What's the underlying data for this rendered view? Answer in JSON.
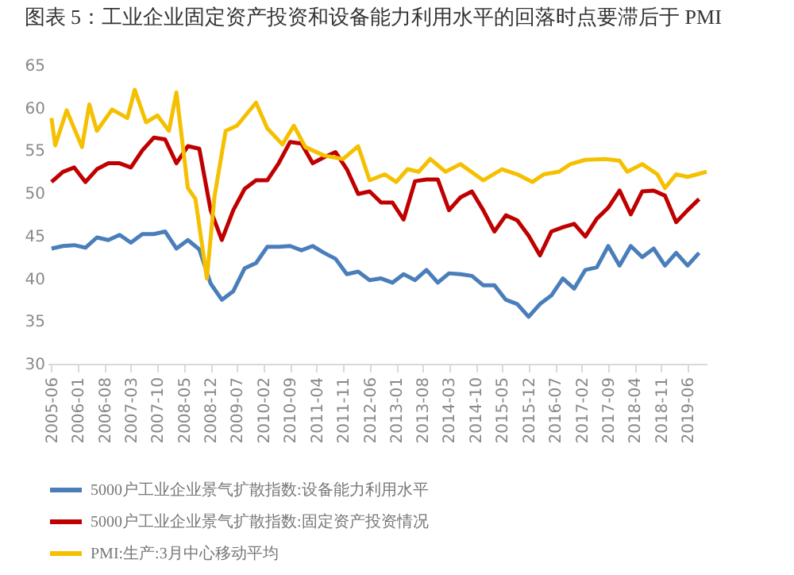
{
  "chart_data": {
    "type": "line",
    "title": "图表 5：工业企业固定资产投资和设备能力利用水平的回落时点要滞后于 PMI",
    "xlim": [
      "2005-05",
      "2019-11"
    ],
    "xticks": [
      "2005-06",
      "2006-01",
      "2006-08",
      "2007-03",
      "2007-10",
      "2008-05",
      "2008-12",
      "2009-07",
      "2010-02",
      "2010-09",
      "2011-04",
      "2011-11",
      "2012-06",
      "2013-01",
      "2013-08",
      "2014-03",
      "2014-10",
      "2015-05",
      "2015-12",
      "2016-07",
      "2017-02",
      "2017-09",
      "2018-04",
      "2018-11",
      "2019-06"
    ],
    "ylim": [
      30,
      65
    ],
    "yticks": [
      30,
      35,
      40,
      45,
      50,
      55,
      60,
      65
    ],
    "grid": false,
    "legend": "bottom",
    "line_style": "solid",
    "marker": "none",
    "series": [
      {
        "name": "5000户工业企业景气扩散指数:设备能力利用水平",
        "color": "#4a7ebb",
        "x": [
          "2005-06",
          "2005-09",
          "2005-12",
          "2006-03",
          "2006-06",
          "2006-09",
          "2006-12",
          "2007-03",
          "2007-06",
          "2007-09",
          "2007-12",
          "2008-03",
          "2008-06",
          "2008-09",
          "2008-12",
          "2009-03",
          "2009-06",
          "2009-09",
          "2009-12",
          "2010-03",
          "2010-06",
          "2010-09",
          "2010-12",
          "2011-03",
          "2011-06",
          "2011-09",
          "2011-12",
          "2012-03",
          "2012-06",
          "2012-09",
          "2012-12",
          "2013-03",
          "2013-06",
          "2013-09",
          "2013-12",
          "2014-03",
          "2014-06",
          "2014-09",
          "2014-12",
          "2015-03",
          "2015-06",
          "2015-09",
          "2015-12",
          "2016-03",
          "2016-06",
          "2016-09",
          "2016-12",
          "2017-03",
          "2017-06",
          "2017-09",
          "2017-12",
          "2018-03",
          "2018-06",
          "2018-09",
          "2018-12",
          "2019-03",
          "2019-06",
          "2019-09"
        ],
        "values": [
          43.5,
          43.8,
          43.9,
          43.6,
          44.8,
          44.5,
          45.1,
          44.2,
          45.2,
          45.2,
          45.5,
          43.5,
          44.5,
          43.4,
          39.4,
          37.5,
          38.5,
          41.2,
          41.8,
          43.7,
          43.7,
          43.8,
          43.3,
          43.8,
          43.0,
          42.3,
          40.5,
          40.8,
          39.8,
          40.0,
          39.5,
          40.5,
          39.8,
          41.0,
          39.5,
          40.6,
          40.5,
          40.3,
          39.2,
          39.2,
          37.5,
          37.0,
          35.5,
          37.0,
          38.0,
          40.0,
          38.8,
          41.0,
          41.3,
          43.8,
          41.5,
          43.8,
          42.5,
          43.5,
          41.5,
          43.0,
          41.5,
          43.0
        ]
      },
      {
        "name": "5000户工业企业景气扩散指数:固定资产投资情况",
        "color": "#c00000",
        "x": [
          "2005-06",
          "2005-09",
          "2005-12",
          "2006-03",
          "2006-06",
          "2006-09",
          "2006-12",
          "2007-03",
          "2007-06",
          "2007-09",
          "2007-12",
          "2008-03",
          "2008-06",
          "2008-09",
          "2008-12",
          "2009-03",
          "2009-06",
          "2009-09",
          "2009-12",
          "2010-03",
          "2010-06",
          "2010-09",
          "2010-12",
          "2011-03",
          "2011-06",
          "2011-09",
          "2011-12",
          "2012-03",
          "2012-06",
          "2012-09",
          "2012-12",
          "2013-03",
          "2013-06",
          "2013-09",
          "2013-12",
          "2014-03",
          "2014-06",
          "2014-09",
          "2014-12",
          "2015-03",
          "2015-06",
          "2015-09",
          "2015-12",
          "2016-03",
          "2016-06",
          "2016-09",
          "2016-12",
          "2017-03",
          "2017-06",
          "2017-09",
          "2017-12",
          "2018-03",
          "2018-06",
          "2018-09",
          "2018-12",
          "2019-03",
          "2019-06",
          "2019-09"
        ],
        "values": [
          51.3,
          52.5,
          53.0,
          51.3,
          52.8,
          53.5,
          53.5,
          53.0,
          55.0,
          56.5,
          56.3,
          53.5,
          55.5,
          55.2,
          48.0,
          44.5,
          48.0,
          50.5,
          51.5,
          51.5,
          53.5,
          56.0,
          55.8,
          53.5,
          54.2,
          54.8,
          52.8,
          49.9,
          50.2,
          48.9,
          48.9,
          46.9,
          51.4,
          51.6,
          51.6,
          48.0,
          49.5,
          50.2,
          48.0,
          45.5,
          47.4,
          46.8,
          45.0,
          42.7,
          45.5,
          46.0,
          46.4,
          44.9,
          47.0,
          48.3,
          50.3,
          47.5,
          50.2,
          50.3,
          49.7,
          46.6,
          48.0,
          49.3
        ]
      },
      {
        "name": "PMI:生产:3月中心移动平均",
        "color": "#f5c000",
        "x": [
          "2005-06",
          "2005-07",
          "2005-10",
          "2006-02",
          "2006-04",
          "2006-06",
          "2006-10",
          "2007-02",
          "2007-04",
          "2007-07",
          "2007-10",
          "2008-01",
          "2008-03",
          "2008-06",
          "2008-08",
          "2008-11",
          "2009-01",
          "2009-04",
          "2009-07",
          "2009-12",
          "2010-03",
          "2010-07",
          "2010-10",
          "2011-01",
          "2011-06",
          "2011-11",
          "2012-03",
          "2012-06",
          "2012-10",
          "2013-01",
          "2013-04",
          "2013-07",
          "2013-10",
          "2014-02",
          "2014-06",
          "2014-12",
          "2015-05",
          "2015-09",
          "2016-01",
          "2016-04",
          "2016-08",
          "2016-11",
          "2017-03",
          "2017-08",
          "2017-12",
          "2018-02",
          "2018-06",
          "2018-10",
          "2018-12",
          "2019-03",
          "2019-06",
          "2019-11"
        ],
        "values": [
          58.8,
          55.6,
          59.7,
          55.4,
          60.4,
          57.3,
          59.8,
          58.8,
          62.1,
          58.3,
          59.1,
          57.3,
          61.8,
          50.6,
          49.3,
          40.0,
          49.6,
          57.3,
          57.9,
          60.6,
          57.6,
          55.7,
          57.9,
          55.4,
          54.4,
          54.0,
          55.5,
          51.5,
          52.2,
          51.3,
          52.8,
          52.5,
          54.0,
          52.5,
          53.4,
          51.5,
          52.8,
          52.2,
          51.3,
          52.2,
          52.5,
          53.4,
          53.9,
          54.0,
          53.8,
          52.5,
          53.4,
          52.2,
          50.6,
          52.2,
          51.9,
          52.5
        ]
      }
    ]
  }
}
